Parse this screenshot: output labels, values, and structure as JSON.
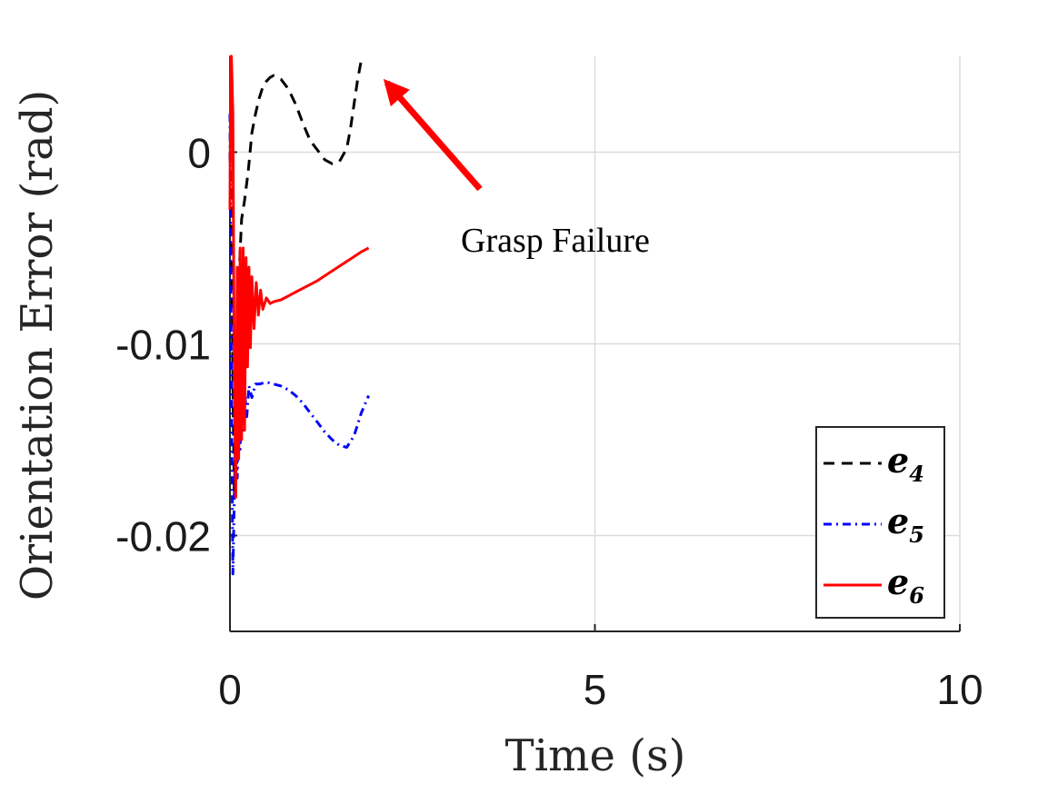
{
  "chart_data": {
    "type": "line",
    "title": "",
    "xlabel": "Time (s)",
    "ylabel": "Orientation Error (rad)",
    "xlim": [
      0,
      10
    ],
    "ylim": [
      -0.025,
      0.005
    ],
    "xticks": [
      0,
      5,
      10
    ],
    "xtick_labels": [
      "0",
      "5",
      "10"
    ],
    "yticks": [
      0,
      -0.01,
      -0.02
    ],
    "ytick_labels": [
      "0",
      "-0.01",
      "-0.02"
    ],
    "grid": true,
    "legend_position": "bottom-right",
    "colors": {
      "e4": "#000000",
      "e5": "#0000ff",
      "e6": "#ff0000",
      "arrow": "#ff0000"
    },
    "series": [
      {
        "name": "e4",
        "sub": "4",
        "style": "dashed",
        "color": "#000000",
        "x": [
          0,
          0.02,
          0.04,
          0.06,
          0.08,
          0.1,
          0.13,
          0.16,
          0.2,
          0.25,
          0.3,
          0.35,
          0.4,
          0.45,
          0.5,
          0.55,
          0.6,
          0.65,
          0.7,
          0.8,
          0.9,
          1.0,
          1.1,
          1.2,
          1.3,
          1.4,
          1.5,
          1.6,
          1.65,
          1.7,
          1.75,
          1.8
        ],
        "y": [
          0,
          -0.003,
          -0.012,
          -0.018,
          -0.016,
          -0.01,
          -0.006,
          -0.0035,
          -0.0025,
          -0.001,
          0.001,
          0.002,
          0.0028,
          0.0034,
          0.0037,
          0.0039,
          0.004,
          0.0039,
          0.0038,
          0.0033,
          0.0025,
          0.0015,
          0.0006,
          0.0001,
          -0.0004,
          -0.0006,
          -0.0005,
          0.0002,
          0.0012,
          0.0025,
          0.0038,
          0.0048
        ]
      },
      {
        "name": "e5",
        "sub": "5",
        "style": "dashdot",
        "color": "#0000ff",
        "x": [
          0,
          0.02,
          0.04,
          0.06,
          0.08,
          0.1,
          0.12,
          0.14,
          0.16,
          0.18,
          0.2,
          0.23,
          0.26,
          0.3,
          0.35,
          0.4,
          0.5,
          0.6,
          0.7,
          0.8,
          0.9,
          1.0,
          1.1,
          1.2,
          1.3,
          1.4,
          1.5,
          1.6,
          1.7,
          1.8,
          1.9
        ],
        "y": [
          0.002,
          -0.012,
          -0.022,
          -0.018,
          -0.014,
          -0.017,
          -0.013,
          -0.0155,
          -0.0125,
          -0.0145,
          -0.0125,
          -0.0138,
          -0.0122,
          -0.0128,
          -0.0121,
          -0.0121,
          -0.012,
          -0.0121,
          -0.0122,
          -0.0124,
          -0.0127,
          -0.0131,
          -0.0136,
          -0.0141,
          -0.0146,
          -0.015,
          -0.0153,
          -0.0154,
          -0.0148,
          -0.0136,
          -0.0127
        ]
      },
      {
        "name": "e6",
        "sub": "6",
        "style": "solid",
        "color": "#ff0000",
        "x": [
          0,
          0.01,
          0.02,
          0.04,
          0.06,
          0.08,
          0.1,
          0.12,
          0.14,
          0.16,
          0.18,
          0.2,
          0.22,
          0.24,
          0.26,
          0.28,
          0.3,
          0.33,
          0.36,
          0.39,
          0.42,
          0.45,
          0.5,
          0.55,
          0.6,
          0.7,
          0.8,
          0.9,
          1.0,
          1.2,
          1.4,
          1.6,
          1.8,
          1.9
        ],
        "y": [
          -0.003,
          0.005,
          0.005,
          0.002,
          -0.012,
          -0.018,
          -0.006,
          -0.016,
          -0.005,
          -0.015,
          -0.005,
          -0.0145,
          -0.0055,
          -0.0112,
          -0.006,
          -0.0102,
          -0.0065,
          -0.0092,
          -0.0068,
          -0.0085,
          -0.0072,
          -0.0082,
          -0.0076,
          -0.0079,
          -0.0078,
          -0.0077,
          -0.0075,
          -0.0073,
          -0.0071,
          -0.0067,
          -0.0062,
          -0.0057,
          -0.0052,
          -0.005
        ]
      }
    ],
    "annotations": [
      {
        "text": "Grasp Failure",
        "points_to": {
          "x": 2.0,
          "y": 0.004
        }
      }
    ]
  }
}
